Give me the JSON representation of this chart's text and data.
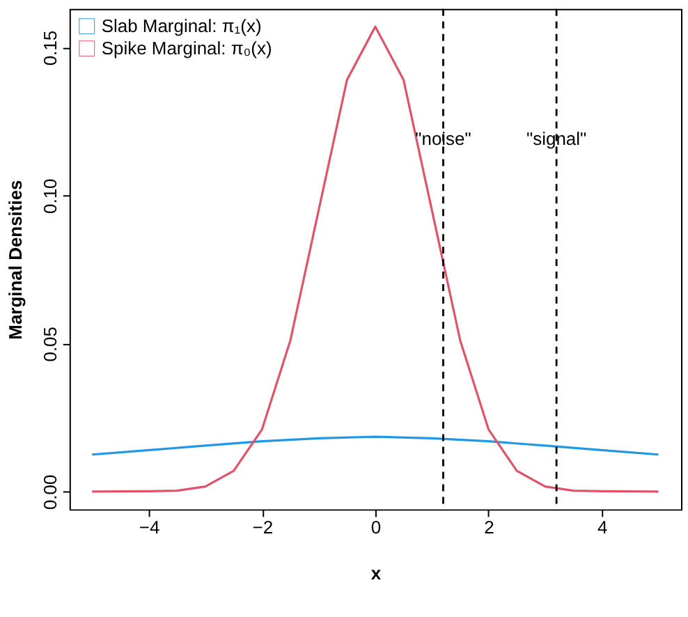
{
  "chart_data": {
    "type": "line",
    "xlabel": "x",
    "ylabel": "Marginal Densities",
    "xlim": [
      -5.4,
      5.4
    ],
    "xticks": [
      -4,
      -2,
      0,
      2,
      4
    ],
    "ylim": [
      -0.006,
      0.163
    ],
    "yticks": [
      {
        "value": 0,
        "label": "0.00"
      },
      {
        "value": 0.05,
        "label": "0.05"
      },
      {
        "value": 0.1,
        "label": "0.10"
      },
      {
        "value": 0.15,
        "label": "0.15"
      }
    ],
    "series": [
      {
        "name": "Slab Marginal: π₁(x)",
        "color": "#2297e6",
        "x": [
          -5,
          -4,
          -3,
          -2,
          -1,
          0,
          1,
          2,
          3,
          4,
          5
        ],
        "values": [
          0.0125,
          0.014,
          0.0155,
          0.017,
          0.018,
          0.0185,
          0.018,
          0.017,
          0.0155,
          0.014,
          0.0125
        ]
      },
      {
        "name": "Spike Marginal: π₀(x)",
        "color": "#df536b",
        "x": [
          -5,
          -4,
          -3.5,
          -3,
          -2.5,
          -2,
          -1.5,
          -1,
          -0.5,
          0,
          0.5,
          1,
          1.5,
          2,
          2.5,
          3,
          3.5,
          4,
          5
        ],
        "values": [
          0,
          0.0001,
          0.0003,
          0.0017,
          0.007,
          0.021,
          0.051,
          0.095,
          0.139,
          0.157,
          0.139,
          0.095,
          0.051,
          0.021,
          0.007,
          0.0017,
          0.0003,
          0.0001,
          0
        ]
      }
    ],
    "ref_lines": [
      {
        "axis": "x",
        "value": 1.2,
        "label": "\"noise\"",
        "color": "#000000",
        "line_style": "dashed"
      },
      {
        "axis": "x",
        "value": 3.2,
        "label": "\"signal\"",
        "color": "#000000",
        "line_style": "dashed"
      }
    ],
    "legend": "top left",
    "grid": false
  }
}
